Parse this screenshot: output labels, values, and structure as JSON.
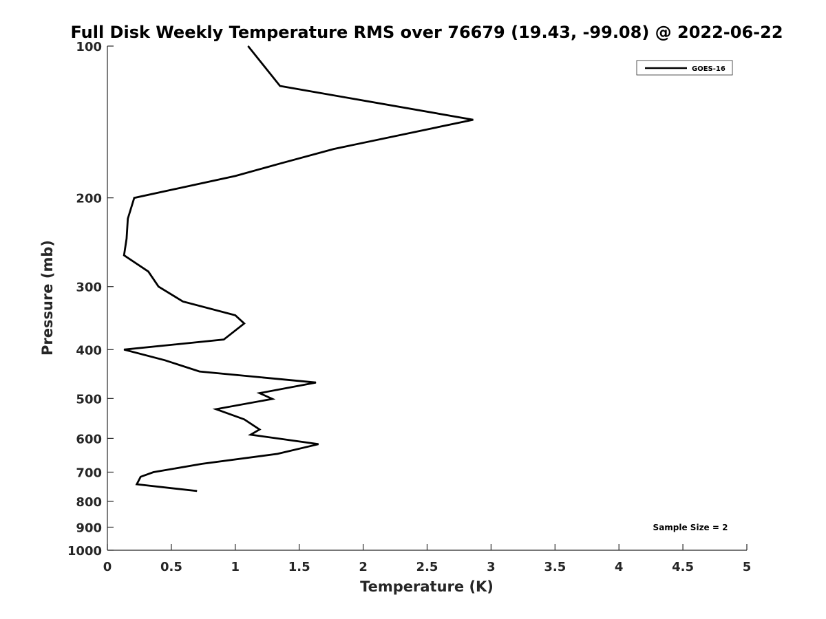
{
  "chart_data": {
    "type": "line",
    "title": "Full Disk Weekly Temperature RMS over 76679 (19.43, -99.08) @ 2022-06-22",
    "xlabel": "Temperature (K)",
    "ylabel": "Pressure (mb)",
    "xlim": [
      0,
      5
    ],
    "ylim": [
      100,
      1000
    ],
    "y_scale": "log",
    "y_reversed": true,
    "grid": false,
    "legend_position": "top-right",
    "x_ticks": [
      "0",
      "0.5",
      "1",
      "1.5",
      "2",
      "2.5",
      "3",
      "3.5",
      "4",
      "4.5",
      "5"
    ],
    "y_ticks": [
      "100",
      "200",
      "300",
      "400",
      "500",
      "600",
      "700",
      "800",
      "900",
      "1000"
    ],
    "series": [
      {
        "name": "GOES-16",
        "color": "#000000",
        "points": [
          [
            1.1,
            100
          ],
          [
            1.35,
            120
          ],
          [
            2.86,
            140
          ],
          [
            1.77,
            160
          ],
          [
            1.35,
            171
          ],
          [
            1.0,
            181
          ],
          [
            0.21,
            200
          ],
          [
            0.16,
            220
          ],
          [
            0.15,
            241
          ],
          [
            0.13,
            260
          ],
          [
            0.32,
            280
          ],
          [
            0.4,
            300
          ],
          [
            0.59,
            321
          ],
          [
            1.0,
            342
          ],
          [
            1.07,
            355
          ],
          [
            0.91,
            382
          ],
          [
            0.13,
            400
          ],
          [
            0.45,
            420
          ],
          [
            0.72,
            442
          ],
          [
            1.63,
            465
          ],
          [
            1.19,
            488
          ],
          [
            1.29,
            501
          ],
          [
            0.85,
            525
          ],
          [
            1.07,
            550
          ],
          [
            1.19,
            576
          ],
          [
            1.12,
            590
          ],
          [
            1.65,
            616
          ],
          [
            1.33,
            644
          ],
          [
            0.74,
            674
          ],
          [
            0.36,
            700
          ],
          [
            0.26,
            715
          ],
          [
            0.23,
            740
          ],
          [
            0.7,
            763
          ]
        ]
      }
    ],
    "annotation": "Sample Size = 2"
  }
}
